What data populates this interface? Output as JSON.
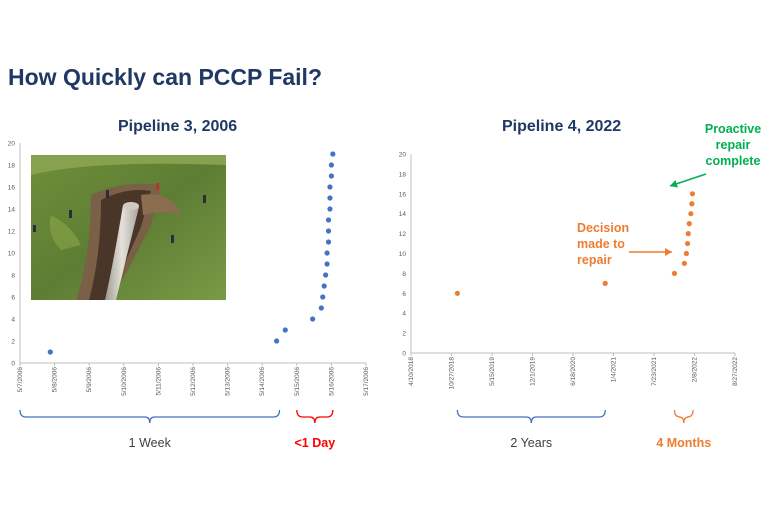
{
  "page_title": "How Quickly can PCCP Fail?",
  "colors": {
    "title": "#1f3864",
    "blue_series": "#4472c4",
    "orange_series": "#ed7d31",
    "red_label": "#ff0000",
    "green_label": "#00b050",
    "axis": "#bfbfbf",
    "tick_text": "#595959"
  },
  "photo": {
    "description_icon": "pipeline-failure-photo"
  },
  "chart_data": [
    {
      "type": "scatter",
      "title": "Pipeline 3, 2006",
      "x_ticks": [
        "5/7/2006",
        "5/8/2006",
        "5/9/2006",
        "5/10/2006",
        "5/11/2006",
        "5/12/2006",
        "5/13/2006",
        "5/14/2006",
        "5/15/2006",
        "5/16/2006",
        "5/17/2006"
      ],
      "y_ticks": [
        "0",
        "2",
        "4",
        "6",
        "8",
        "10",
        "12",
        "14",
        "16",
        "18",
        "20"
      ],
      "xlim": [
        "5/7/2006",
        "5/17/2006"
      ],
      "ylim": [
        0,
        20
      ],
      "series": [
        {
          "color": "#4472c4",
          "points": [
            {
              "x": "5/7/2006 21:00",
              "y": 1
            },
            {
              "x": "5/14/2006 10:00",
              "y": 2
            },
            {
              "x": "5/14/2006 16:00",
              "y": 3
            },
            {
              "x": "5/15/2006 11:00",
              "y": 4
            },
            {
              "x": "5/15/2006 17:00",
              "y": 5
            },
            {
              "x": "5/15/2006 18:00",
              "y": 6
            },
            {
              "x": "5/15/2006 19:00",
              "y": 7
            },
            {
              "x": "5/15/2006 20:00",
              "y": 8
            },
            {
              "x": "5/15/2006 21:00",
              "y": 9
            },
            {
              "x": "5/15/2006 21:00",
              "y": 10
            },
            {
              "x": "5/15/2006 22:00",
              "y": 11
            },
            {
              "x": "5/15/2006 22:00",
              "y": 12
            },
            {
              "x": "5/15/2006 22:00",
              "y": 13
            },
            {
              "x": "5/15/2006 23:00",
              "y": 14
            },
            {
              "x": "5/15/2006 23:00",
              "y": 15
            },
            {
              "x": "5/15/2006 23:00",
              "y": 16
            },
            {
              "x": "5/16/2006 0:00",
              "y": 17
            },
            {
              "x": "5/16/2006 0:00",
              "y": 18
            },
            {
              "x": "5/16/2006 1:00",
              "y": 19
            }
          ]
        }
      ],
      "brackets": [
        {
          "label": "1 Week",
          "from": "5/7/2006",
          "to": "5/14/2006 12:00",
          "color": "#4472c4",
          "label_color": "#404040"
        },
        {
          "label": "<1 Day",
          "from": "5/15/2006",
          "to": "5/16/2006 1:00",
          "color": "#ff0000",
          "label_color": "#ff0000"
        }
      ]
    },
    {
      "type": "scatter",
      "title": "Pipeline 4, 2022",
      "x_ticks": [
        "4/10/2018",
        "10/27/2018",
        "5/15/2019",
        "12/1/2019",
        "6/18/2020",
        "1/4/2021",
        "7/23/2021",
        "2/8/2022",
        "8/27/2022"
      ],
      "y_ticks": [
        "0",
        "2",
        "4",
        "6",
        "8",
        "10",
        "12",
        "14",
        "16",
        "18",
        "20"
      ],
      "xlim": [
        "4/10/2018",
        "8/27/2022"
      ],
      "ylim": [
        0,
        20
      ],
      "series": [
        {
          "color": "#ed7d31",
          "points": [
            {
              "x": "11/25/2018",
              "y": 6
            },
            {
              "x": "11/24/2020",
              "y": 7
            },
            {
              "x": "11/1/2021",
              "y": 8
            },
            {
              "x": "12/20/2021",
              "y": 9
            },
            {
              "x": "12/30/2021",
              "y": 10
            },
            {
              "x": "1/5/2022",
              "y": 11
            },
            {
              "x": "1/8/2022",
              "y": 12
            },
            {
              "x": "1/13/2022",
              "y": 13
            },
            {
              "x": "1/21/2022",
              "y": 14
            },
            {
              "x": "1/26/2022",
              "y": 15
            },
            {
              "x": "1/29/2022",
              "y": 16
            }
          ]
        }
      ],
      "annotations": [
        {
          "text_lines": [
            "Decision",
            "made to",
            "repair"
          ],
          "color": "#ed7d31"
        },
        {
          "text_lines": [
            "Proactive",
            "repair",
            "complete"
          ],
          "color": "#00b050"
        }
      ],
      "brackets": [
        {
          "label": "2 Years",
          "from": "11/25/2018",
          "to": "11/24/2020",
          "color": "#4472c4",
          "label_color": "#404040"
        },
        {
          "label": "4 Months",
          "from": "11/1/2021",
          "to": "2/1/2022",
          "color": "#ed7d31",
          "label_color": "#ed7d31"
        }
      ]
    }
  ]
}
